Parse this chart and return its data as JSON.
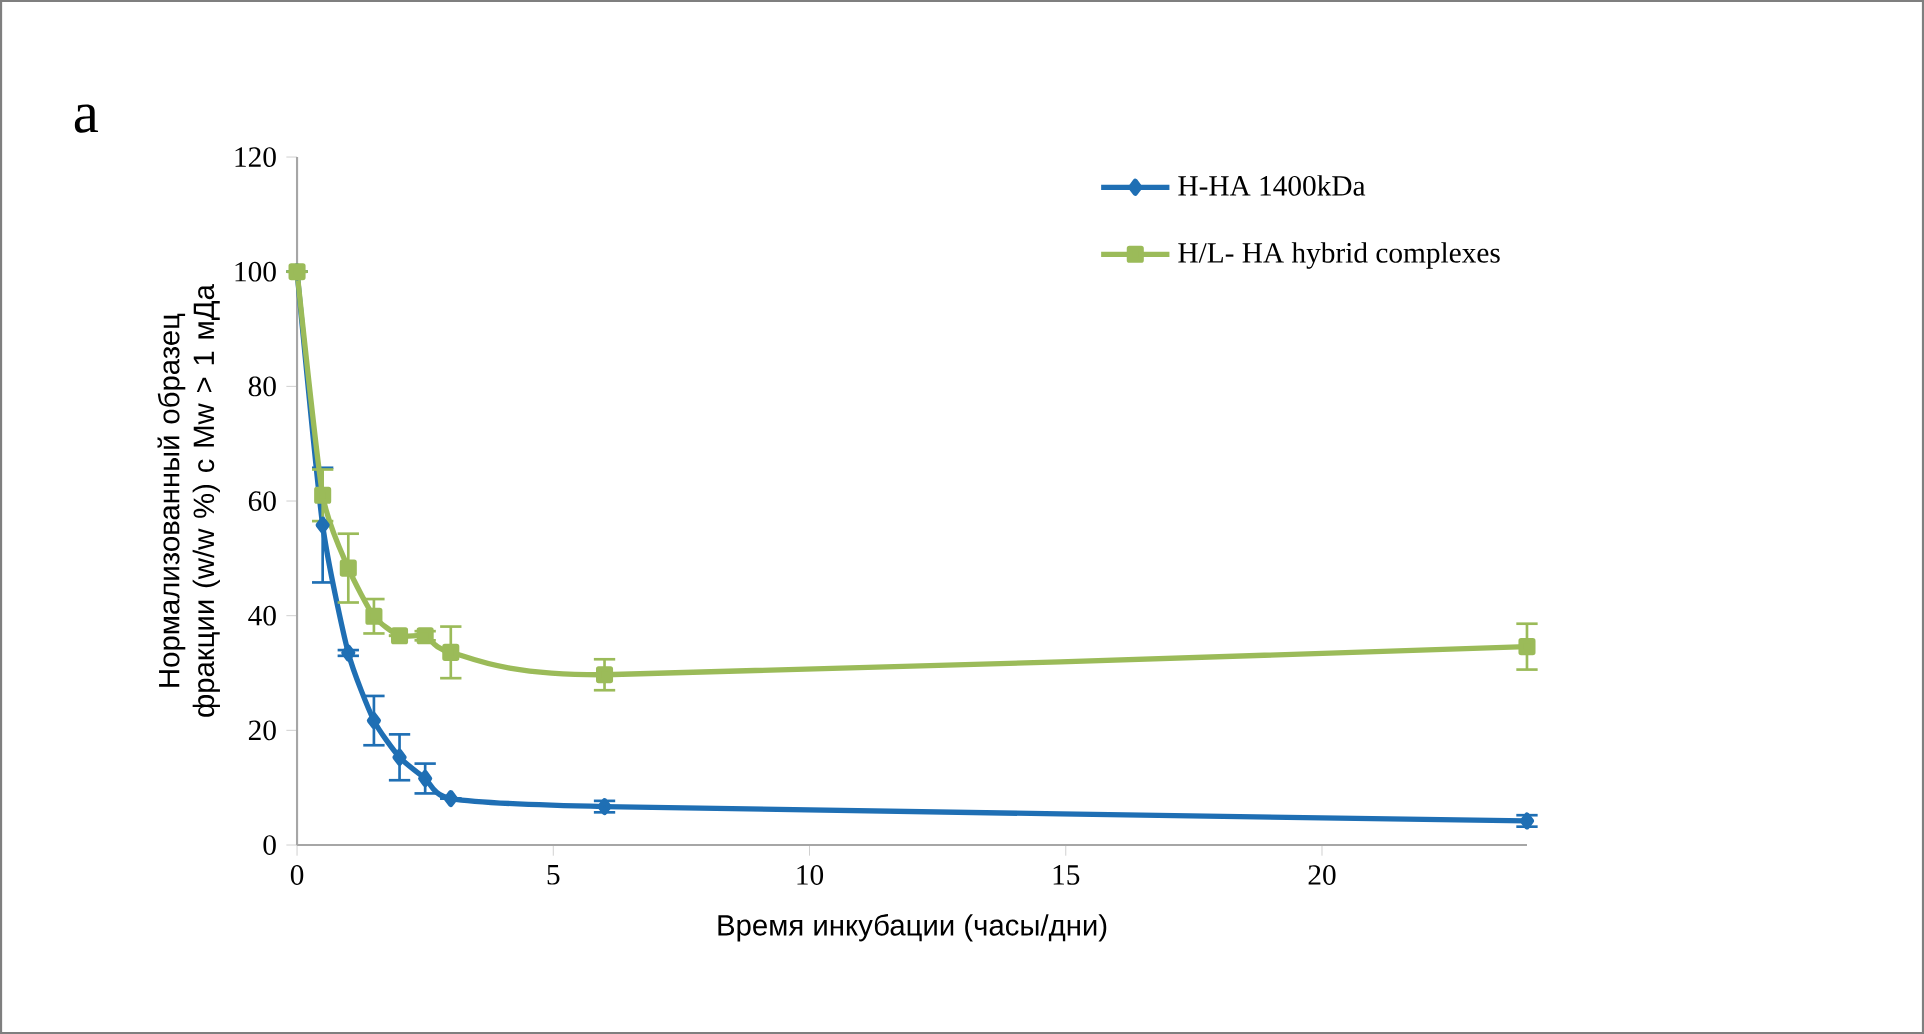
{
  "chart_data": {
    "type": "line",
    "xlabel": "Время инкубации (часы/дни)",
    "ylabel": "Нормализованный образец фракции (w/w %) с Mw > 1 мДа",
    "annotations": [
      "a"
    ],
    "xlim": [
      0,
      24
    ],
    "ylim": [
      0,
      120
    ],
    "xticks": [
      0,
      5,
      10,
      15,
      20
    ],
    "yticks": [
      0,
      20,
      40,
      60,
      80,
      100,
      120
    ],
    "grid": false,
    "legend": "top right",
    "line_style": "solid",
    "series": [
      {
        "name": "H-HA 1400kDa",
        "color": "#1f6fb4",
        "marker": "diamond",
        "x": [
          0,
          0.5,
          1,
          1.5,
          2,
          2.5,
          3,
          6,
          24
        ],
        "values": [
          100,
          55.8,
          33.5,
          21.7,
          15.3,
          11.6,
          8.1,
          6.7,
          4.2
        ],
        "errors": [
          null,
          10,
          0.5,
          4.3,
          4,
          2.6,
          null,
          1,
          1
        ]
      },
      {
        "name": "H/L- HA hybrid complexes",
        "color": "#9bbb59",
        "marker": "square",
        "x": [
          0,
          0.5,
          1,
          1.5,
          2,
          2.5,
          3,
          6,
          24
        ],
        "values": [
          100,
          61,
          48.3,
          39.9,
          36.5,
          36.5,
          33.6,
          29.7,
          34.6
        ],
        "errors": [
          null,
          4.5,
          6,
          3,
          null,
          0.8,
          4.5,
          2.7,
          4
        ]
      }
    ]
  }
}
